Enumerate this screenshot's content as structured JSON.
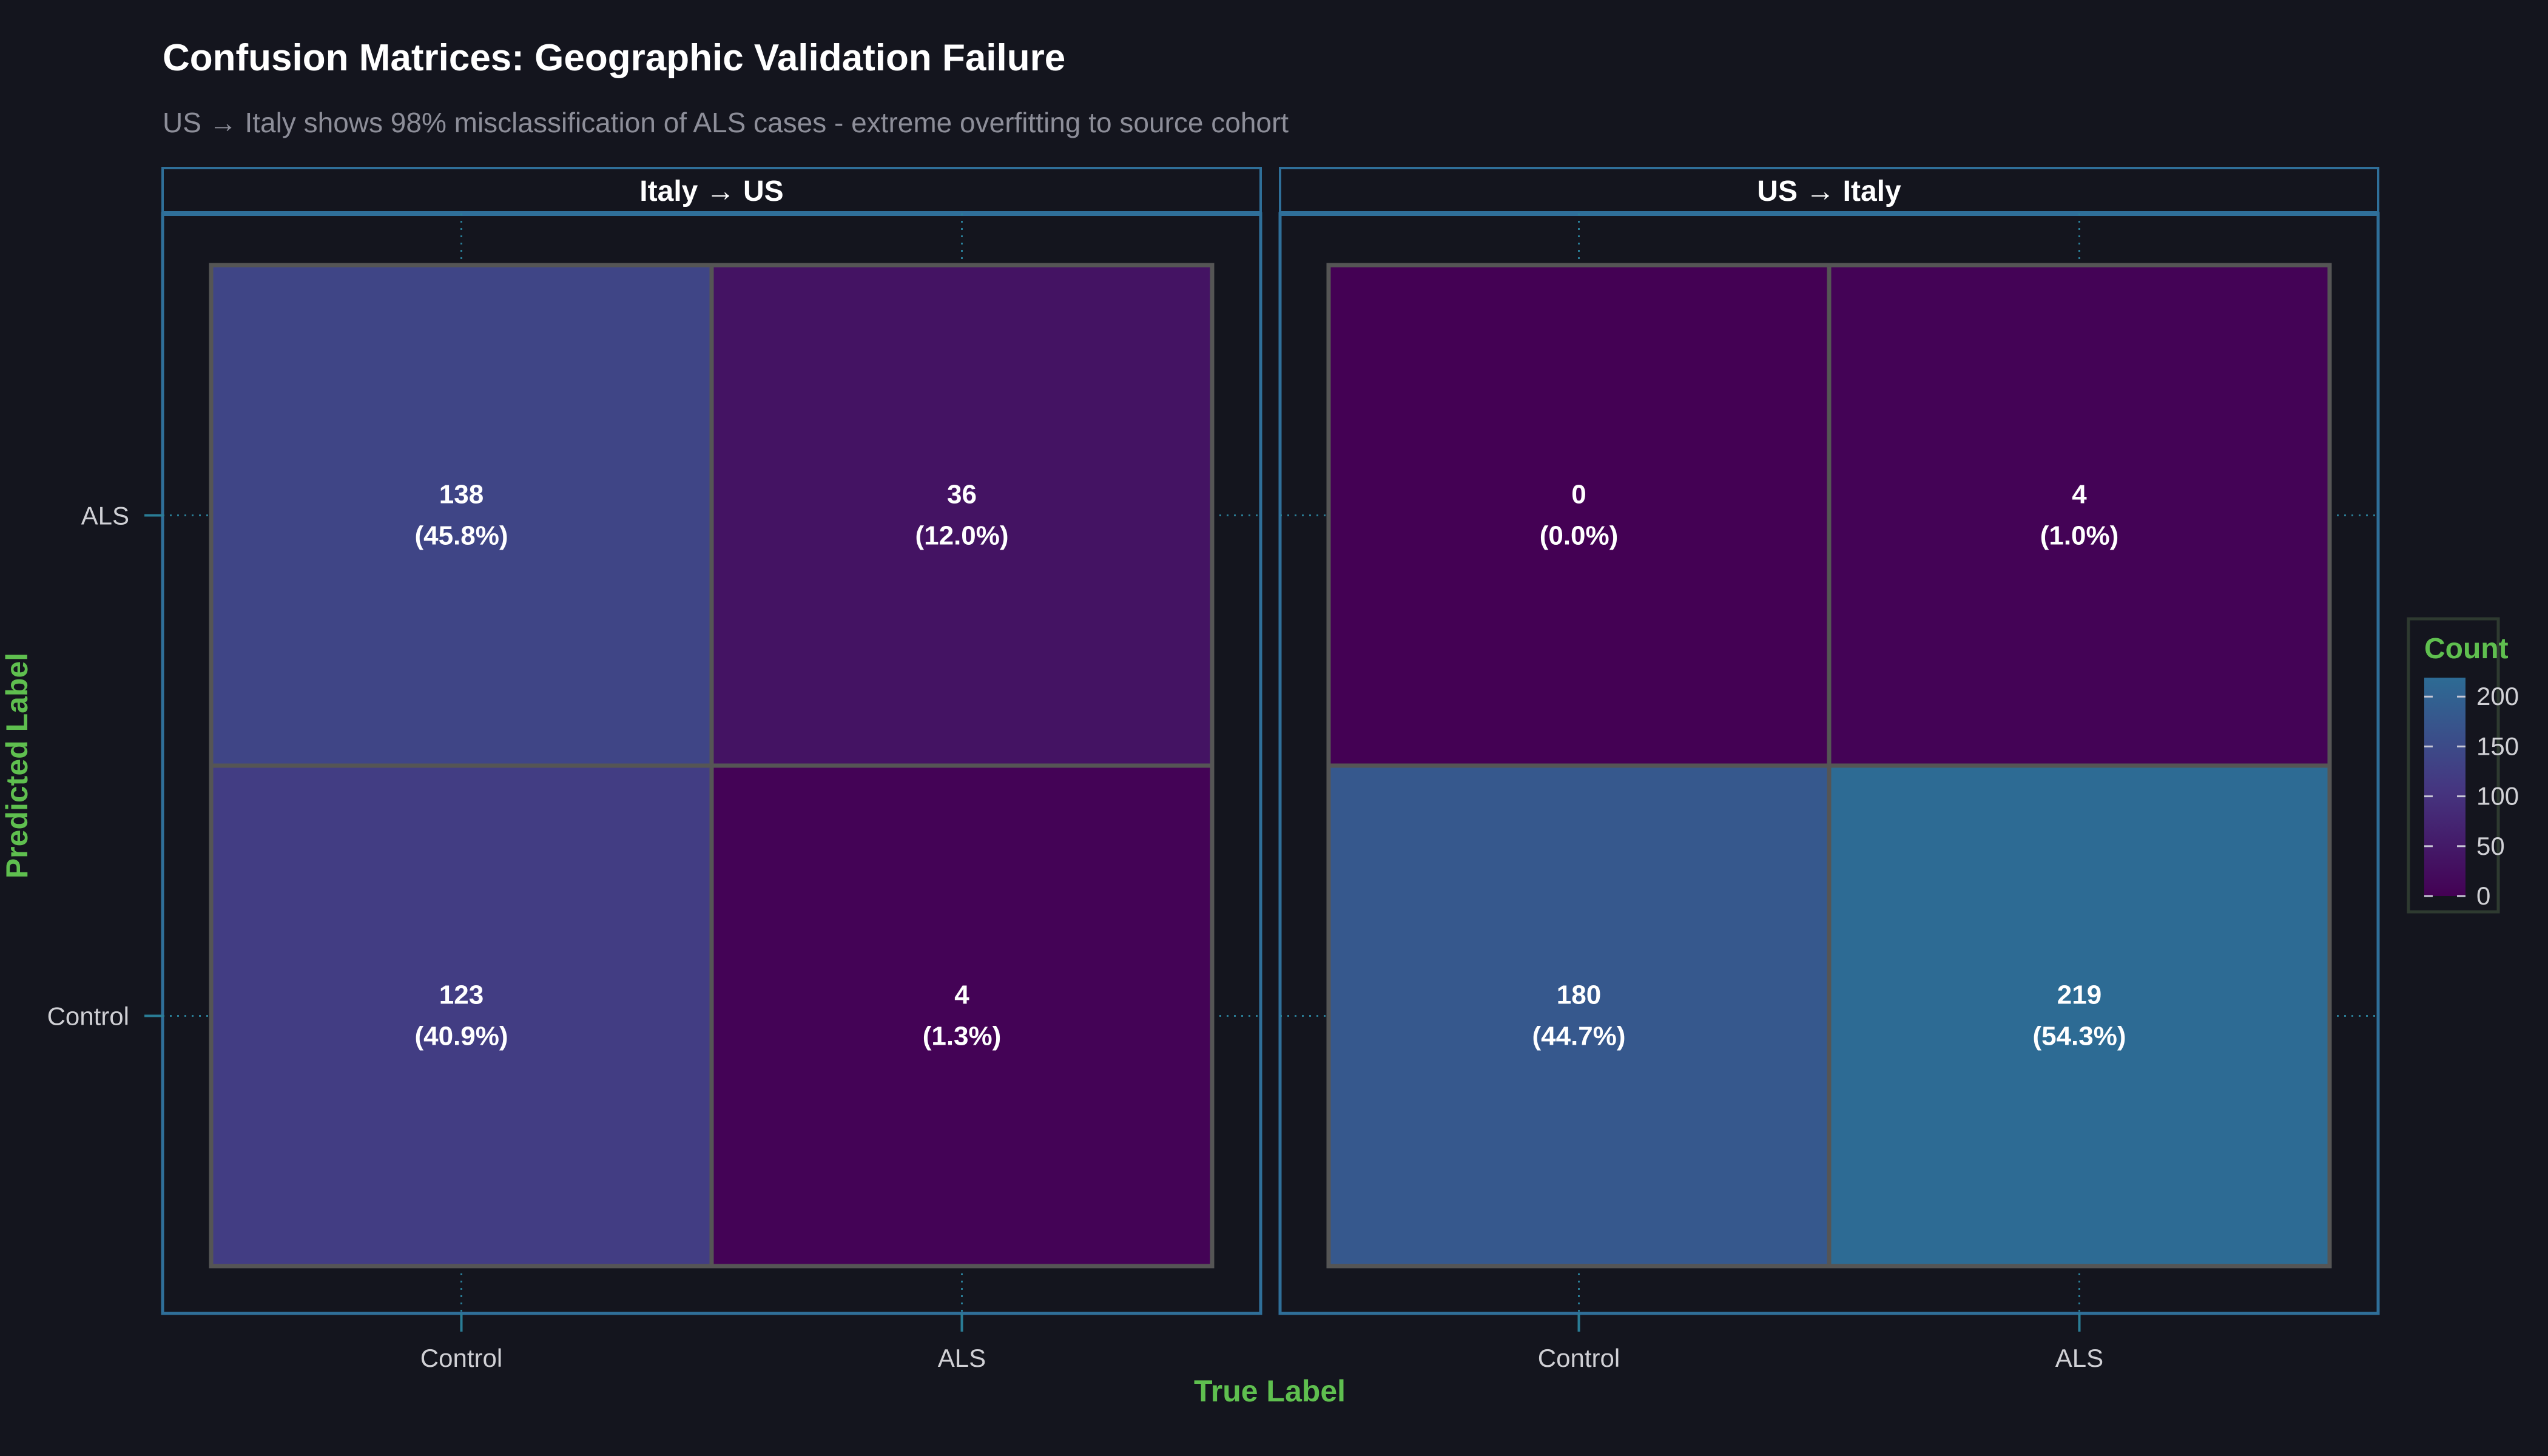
{
  "title": "Confusion Matrices: Geographic Validation Failure",
  "subtitle": "US → Italy shows 98% misclassification of ALS cases - extreme overfitting to source cohort",
  "colors": {
    "background": "#14151e",
    "panel_border": "#2f6f99",
    "tile_border": "#555555",
    "axis_title": "#5fbf4f",
    "scale_low": "#440154",
    "scale_mid": "#453781",
    "scale_high": "#2d6b94"
  },
  "chart_data": {
    "type": "heatmap",
    "xlabel": "True Label",
    "ylabel": "Predicted Label",
    "x_categories": [
      "Control",
      "ALS"
    ],
    "y_categories": [
      "ALS",
      "Control"
    ],
    "legend": {
      "title": "Count",
      "position": "right",
      "range": [
        0,
        219
      ],
      "ticks": [
        0,
        50,
        100,
        150,
        200
      ]
    },
    "panels": [
      {
        "name": "Italy → US",
        "cells": [
          {
            "true": "Control",
            "predicted": "ALS",
            "count": 138,
            "label_count": "138",
            "label_pct": "(45.8%)"
          },
          {
            "true": "ALS",
            "predicted": "ALS",
            "count": 36,
            "label_count": "36",
            "label_pct": "(12.0%)"
          },
          {
            "true": "Control",
            "predicted": "Control",
            "count": 123,
            "label_count": "123",
            "label_pct": "(40.9%)"
          },
          {
            "true": "ALS",
            "predicted": "Control",
            "count": 4,
            "label_count": "4",
            "label_pct": "(1.3%)"
          }
        ]
      },
      {
        "name": "US → Italy",
        "cells": [
          {
            "true": "Control",
            "predicted": "ALS",
            "count": 0,
            "label_count": "0",
            "label_pct": "(0.0%)"
          },
          {
            "true": "ALS",
            "predicted": "ALS",
            "count": 4,
            "label_count": "4",
            "label_pct": "(1.0%)"
          },
          {
            "true": "Control",
            "predicted": "Control",
            "count": 180,
            "label_count": "180",
            "label_pct": "(44.7%)"
          },
          {
            "true": "ALS",
            "predicted": "Control",
            "count": 219,
            "label_count": "219",
            "label_pct": "(54.3%)"
          }
        ]
      }
    ]
  }
}
